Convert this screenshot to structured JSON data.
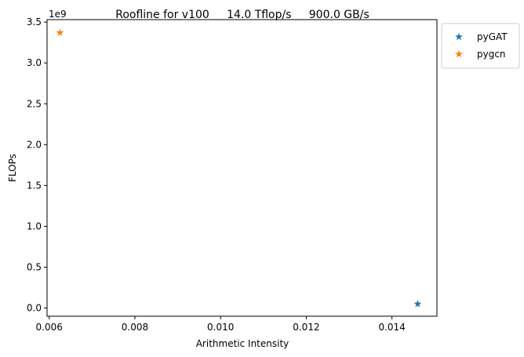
{
  "chart_data": {
    "type": "scatter",
    "title": "Roofline for v100     14.0 Tflop/s     900.0 GB/s",
    "xlabel": "Arithmetic Intensity",
    "ylabel": "FLOPs",
    "y_offset_label": "1e9",
    "xlim": [
      0.00595,
      0.01505
    ],
    "ylim": [
      -0.1,
      3.53
    ],
    "xticks": [
      0.006,
      0.008,
      0.01,
      0.012,
      0.014
    ],
    "xtick_labels": [
      "0.006",
      "0.008",
      "0.010",
      "0.012",
      "0.014"
    ],
    "yticks": [
      0.0,
      0.5,
      1.0,
      1.5,
      2.0,
      2.5,
      3.0,
      3.5
    ],
    "ytick_labels": [
      "0.0",
      "0.5",
      "1.0",
      "1.5",
      "2.0",
      "2.5",
      "3.0",
      "3.5"
    ],
    "grid": false,
    "legend_position": "outside-top-right",
    "marker": "star",
    "series": [
      {
        "name": "pyGAT",
        "color": "#1f77b4",
        "points": [
          {
            "x": 0.0146,
            "y": 0.05
          }
        ]
      },
      {
        "name": "pygcn",
        "color": "#ff7f0e",
        "points": [
          {
            "x": 0.00625,
            "y": 3.37
          }
        ]
      }
    ]
  }
}
